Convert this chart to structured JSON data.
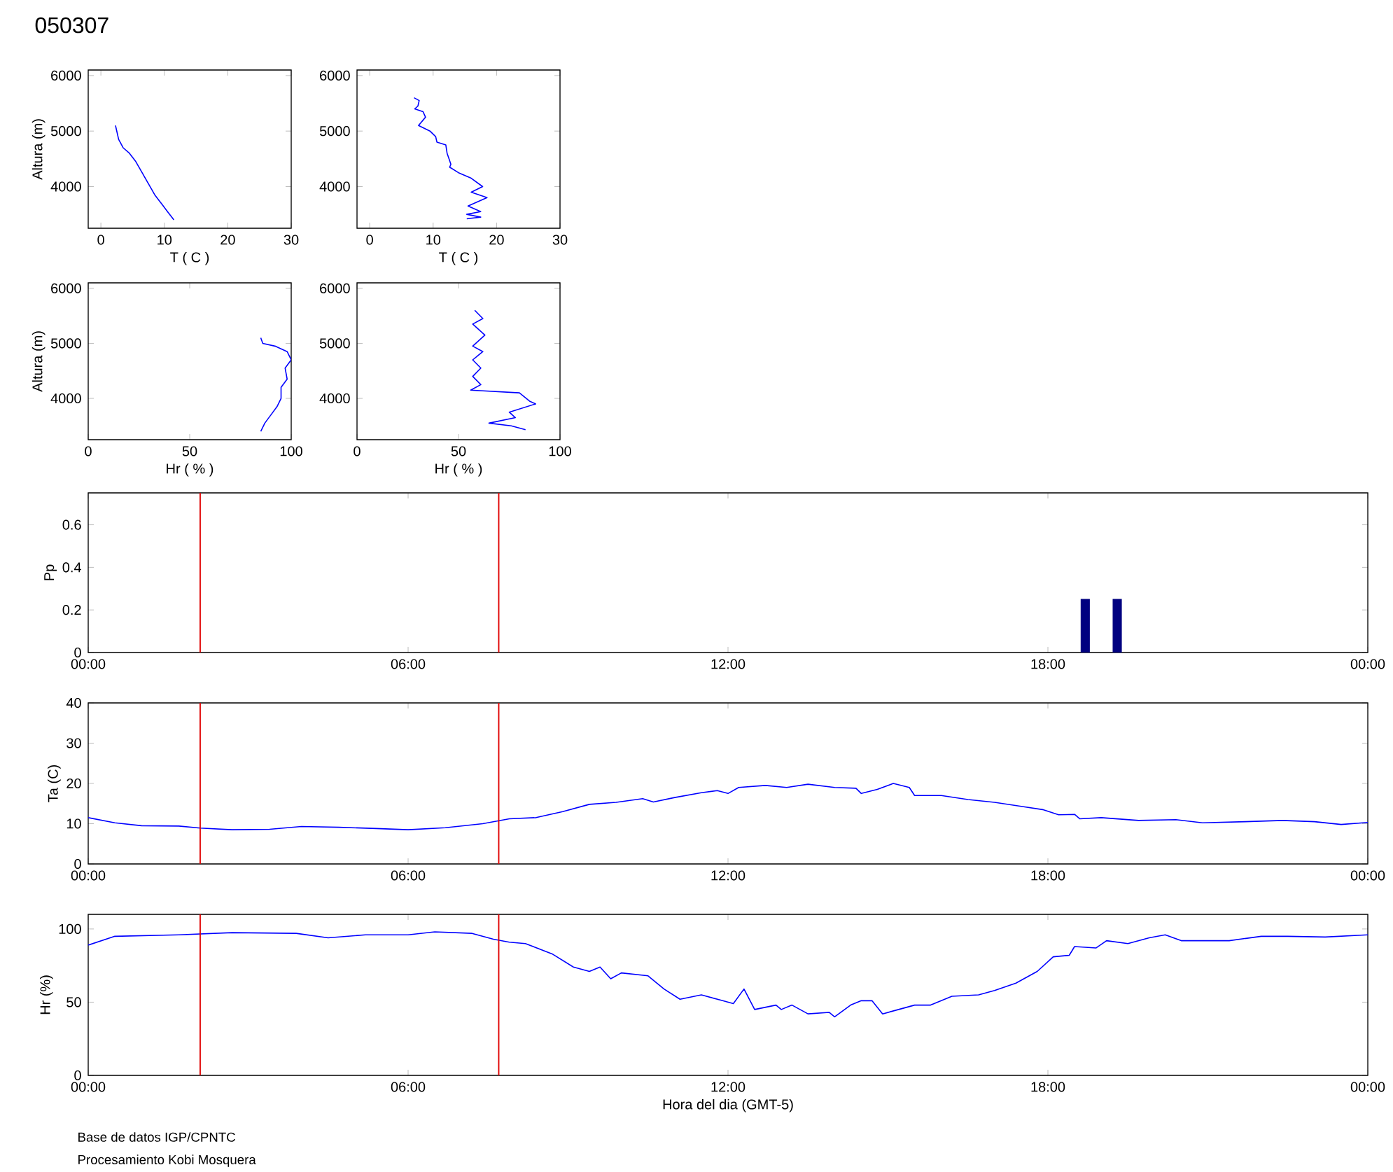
{
  "chart_data": [
    {
      "type": "line",
      "title": "050307",
      "xlabel": "T ( C )",
      "ylabel": "Altura (m)",
      "xlim": [
        -2,
        30
      ],
      "ylim": [
        3250,
        6100
      ],
      "xticks": [
        0,
        10,
        20,
        30
      ],
      "yticks": [
        4000,
        5000,
        6000
      ],
      "series": [
        {
          "color": "#0000ff",
          "x": [
            2.3,
            2.8,
            3.5,
            4.5,
            5.5,
            6.5,
            7.5,
            8.5,
            9.5,
            10.5,
            11.5
          ],
          "values": [
            5100,
            4850,
            4700,
            4600,
            4450,
            4250,
            4050,
            3850,
            3700,
            3550,
            3400
          ]
        }
      ]
    },
    {
      "type": "line",
      "xlabel": "T ( C )",
      "xlim": [
        -2,
        30
      ],
      "ylim": [
        3250,
        6100
      ],
      "xticks": [
        0,
        10,
        20,
        30
      ],
      "yticks": [
        4000,
        5000,
        6000
      ],
      "series": [
        {
          "color": "#0000ff",
          "x": [
            7,
            7.8,
            7.6,
            7.1,
            8.4,
            8.8,
            7.7,
            9.5,
            10.4,
            10.6,
            12,
            12.2,
            12.5,
            12.8,
            12.6,
            14,
            16,
            17.8,
            16,
            18.5,
            15.5,
            17.5,
            15.3,
            17.5,
            15.3
          ],
          "values": [
            5600,
            5550,
            5450,
            5400,
            5350,
            5250,
            5100,
            5000,
            4900,
            4800,
            4750,
            4600,
            4500,
            4400,
            4350,
            4250,
            4150,
            4000,
            3900,
            3800,
            3650,
            3550,
            3500,
            3450,
            3420
          ]
        }
      ]
    },
    {
      "type": "line",
      "xlabel": "Hr ( % )",
      "ylabel": "Altura (m)",
      "xlim": [
        0,
        100
      ],
      "ylim": [
        3250,
        6100
      ],
      "xticks": [
        0,
        50,
        100
      ],
      "yticks": [
        4000,
        5000,
        6000
      ],
      "series": [
        {
          "color": "#0000ff",
          "x": [
            85,
            86,
            92,
            98,
            100,
            97,
            98,
            95,
            95,
            93,
            90,
            87,
            85
          ],
          "values": [
            5100,
            5000,
            4950,
            4850,
            4700,
            4550,
            4350,
            4200,
            4000,
            3850,
            3700,
            3550,
            3400
          ]
        }
      ]
    },
    {
      "type": "line",
      "xlabel": "Hr ( % )",
      "xlim": [
        0,
        100
      ],
      "ylim": [
        3250,
        6100
      ],
      "xticks": [
        0,
        50,
        100
      ],
      "yticks": [
        4000,
        5000,
        6000
      ],
      "series": [
        {
          "color": "#0000ff",
          "x": [
            58,
            62,
            57,
            63,
            57,
            62,
            57,
            61,
            57,
            61,
            56,
            80,
            85,
            88,
            75,
            78,
            65,
            76,
            83
          ],
          "values": [
            5600,
            5450,
            5350,
            5150,
            4950,
            4850,
            4700,
            4550,
            4400,
            4250,
            4150,
            4100,
            3950,
            3900,
            3750,
            3650,
            3550,
            3500,
            3430
          ]
        }
      ]
    },
    {
      "type": "bar",
      "ylabel": "Pp",
      "xlim": [
        0,
        24
      ],
      "ylim": [
        0,
        0.75
      ],
      "xticks": [
        {
          "value": 0,
          "label": "00:00"
        },
        {
          "value": 6,
          "label": "06:00"
        },
        {
          "value": 12,
          "label": "12:00"
        },
        {
          "value": 18,
          "label": "18:00"
        },
        {
          "value": 24,
          "label": "00:00"
        }
      ],
      "yticks": [
        0,
        0.2,
        0.4,
        0.6
      ],
      "ref_lines": [
        {
          "axis": "x",
          "value": 2.1,
          "color": "#e00000"
        },
        {
          "axis": "x",
          "value": 7.7,
          "color": "#e00000"
        }
      ],
      "series": [
        {
          "color": "#000080",
          "x": [
            18.7,
            19.3
          ],
          "values": [
            0.25,
            0.25
          ]
        }
      ]
    },
    {
      "type": "line",
      "ylabel": "Ta (C)",
      "xlim": [
        0,
        24
      ],
      "ylim": [
        0,
        40
      ],
      "xticks": [
        {
          "value": 0,
          "label": "00:00"
        },
        {
          "value": 6,
          "label": "06:00"
        },
        {
          "value": 12,
          "label": "12:00"
        },
        {
          "value": 18,
          "label": "18:00"
        },
        {
          "value": 24,
          "label": "00:00"
        }
      ],
      "yticks": [
        0,
        10,
        20,
        30,
        40
      ],
      "ref_lines": [
        {
          "axis": "x",
          "value": 2.1,
          "color": "#e00000"
        },
        {
          "axis": "x",
          "value": 7.7,
          "color": "#e00000"
        }
      ],
      "series": [
        {
          "color": "#0000ff",
          "x": [
            0,
            0.5,
            1,
            1.7,
            2.1,
            2.7,
            3.4,
            4,
            4.7,
            5.4,
            6,
            6.7,
            7.4,
            7.9,
            8.4,
            8.9,
            9.4,
            9.9,
            10.4,
            10.6,
            11,
            11.5,
            11.8,
            12,
            12.2,
            12.7,
            13.1,
            13.5,
            14,
            14.4,
            14.5,
            14.8,
            15.1,
            15.4,
            15.5,
            16,
            16.5,
            17,
            17.5,
            17.9,
            18.2,
            18.5,
            18.6,
            19,
            19.7,
            20.4,
            20.9,
            21.7,
            22.4,
            23,
            23.5,
            24
          ],
          "values": [
            11.5,
            10.2,
            9.5,
            9.4,
            8.9,
            8.5,
            8.6,
            9.3,
            9.1,
            8.8,
            8.5,
            9,
            10,
            11.2,
            11.5,
            13,
            14.8,
            15.3,
            16.2,
            15.4,
            16.5,
            17.7,
            18.2,
            17.5,
            19,
            19.5,
            19,
            19.8,
            19,
            18.8,
            17.5,
            18.5,
            20,
            19,
            17,
            17,
            16,
            15.3,
            14.3,
            13.5,
            12.2,
            12.3,
            11.2,
            11.5,
            10.8,
            11,
            10.2,
            10.5,
            10.8,
            10.5,
            9.8,
            10.3
          ]
        }
      ]
    },
    {
      "type": "line",
      "xlabel": "Hora del dia (GMT-5)",
      "ylabel": "Hr (%)",
      "xlim": [
        0,
        24
      ],
      "ylim": [
        0,
        110
      ],
      "xticks": [
        {
          "value": 0,
          "label": "00:00"
        },
        {
          "value": 6,
          "label": "06:00"
        },
        {
          "value": 12,
          "label": "12:00"
        },
        {
          "value": 18,
          "label": "18:00"
        },
        {
          "value": 24,
          "label": "00:00"
        }
      ],
      "yticks": [
        0,
        50,
        100
      ],
      "ref_lines": [
        {
          "axis": "x",
          "value": 2.1,
          "color": "#e00000"
        },
        {
          "axis": "x",
          "value": 7.7,
          "color": "#e00000"
        }
      ],
      "annotations": [
        "Base de datos IGP/CPNTC",
        "Procesamiento Kobi Mosquera"
      ],
      "series": [
        {
          "color": "#0000ff",
          "x": [
            0,
            0.5,
            1.7,
            2.7,
            3.9,
            4.5,
            5.2,
            6,
            6.5,
            7.2,
            7.6,
            7.9,
            8.2,
            8.7,
            9.1,
            9.4,
            9.6,
            9.8,
            10,
            10.5,
            10.8,
            11.1,
            11.5,
            11.9,
            12.1,
            12.3,
            12.5,
            12.9,
            13,
            13.2,
            13.5,
            13.9,
            14,
            14.3,
            14.5,
            14.7,
            14.9,
            15.2,
            15.5,
            15.8,
            16.2,
            16.7,
            17,
            17.4,
            17.8,
            18.1,
            18.4,
            18.5,
            18.9,
            19.1,
            19.5,
            19.9,
            20.2,
            20.5,
            21.4,
            22,
            22.5,
            23.2,
            24
          ],
          "values": [
            89,
            95,
            96,
            97.5,
            97,
            94,
            96,
            96,
            98,
            97,
            93,
            91,
            90,
            83,
            74,
            71,
            74,
            66,
            70,
            68,
            59,
            52,
            55,
            51,
            49,
            59,
            45,
            48,
            45,
            48,
            42,
            43,
            40,
            48,
            51,
            51,
            42,
            45,
            48,
            48,
            54,
            55,
            58,
            63,
            71,
            81,
            82,
            88,
            87,
            92,
            90,
            94,
            96,
            92,
            92,
            95,
            95,
            94.5,
            96
          ]
        }
      ]
    }
  ]
}
